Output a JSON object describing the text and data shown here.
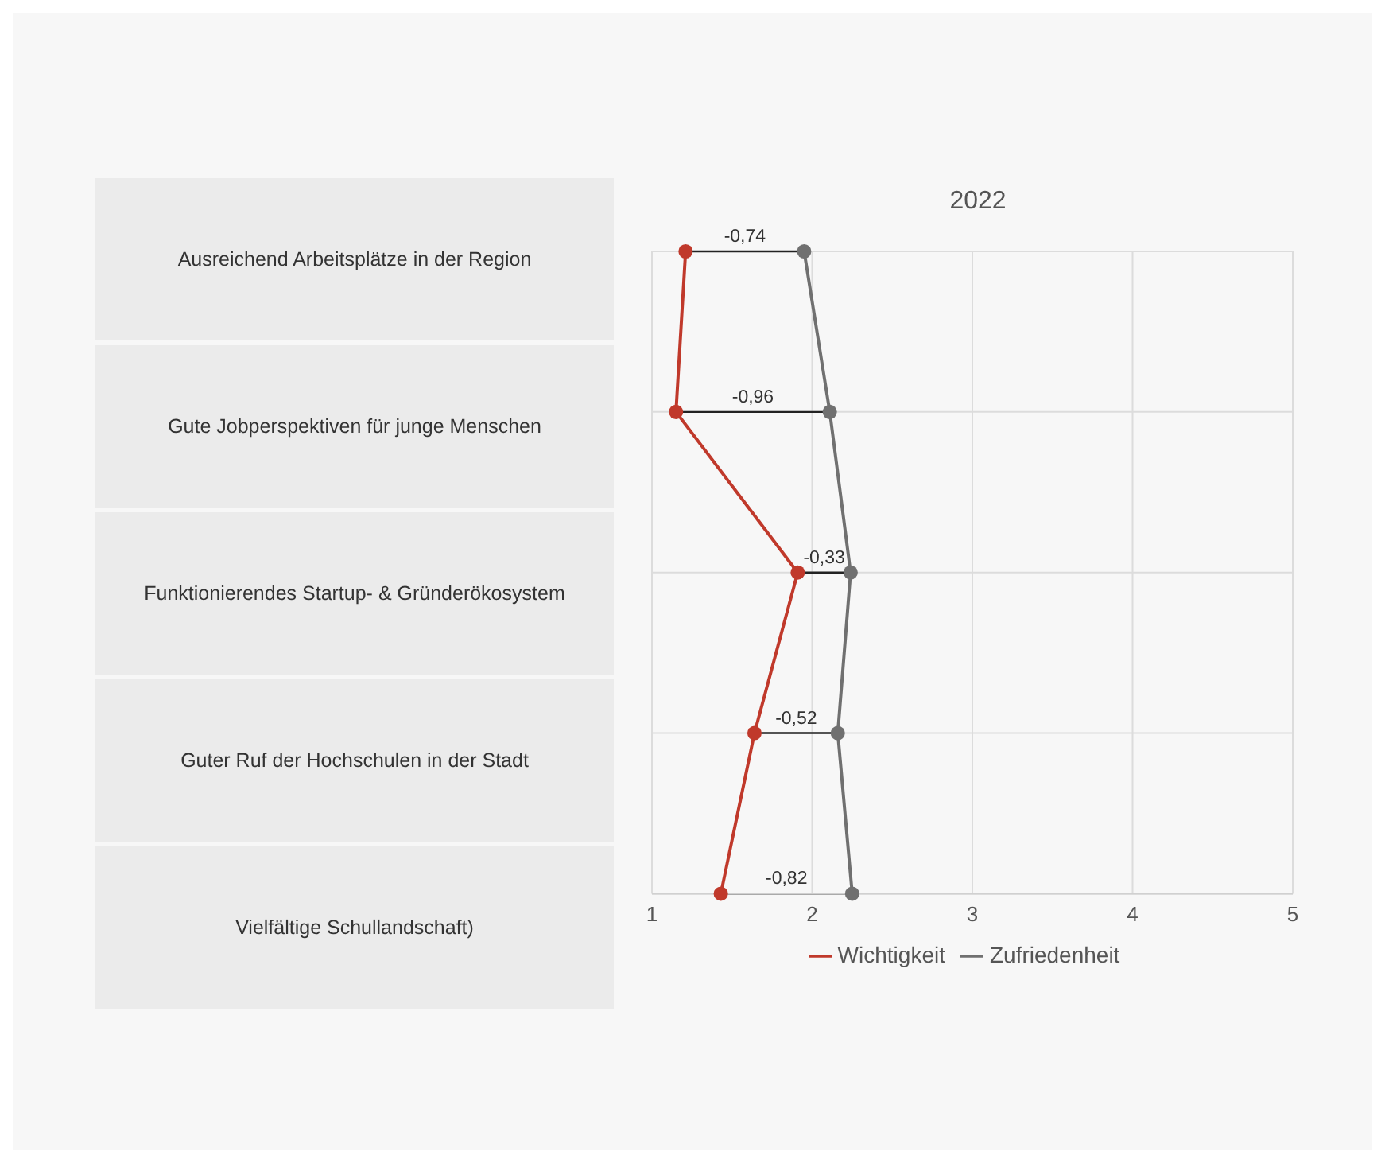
{
  "chart_data": {
    "type": "line",
    "title": "2022",
    "categories": [
      "Ausreichend Arbeitsplätze in der Region",
      "Gute Jobperspektiven für junge Menschen",
      "Funktionierendes Startup- & Gründerökosystem",
      "Guter Ruf der Hochschulen in der Stadt",
      "Vielfältige Schullandschaft)"
    ],
    "series": [
      {
        "name": "Wichtigkeit",
        "color": "#c0392b",
        "values": [
          1.21,
          1.15,
          1.91,
          1.64,
          1.43
        ]
      },
      {
        "name": "Zufriedenheit",
        "color": "#707070",
        "values": [
          1.95,
          2.11,
          2.24,
          2.16,
          2.25
        ]
      }
    ],
    "orientation": "horizontal",
    "xlim": [
      1,
      5
    ],
    "xticks": [
      1,
      2,
      3,
      4,
      5
    ],
    "grid": true,
    "legend": "bottom",
    "marker": "circle",
    "annotations": [
      "-0,74",
      "-0,96",
      "-0,33",
      "-0,52",
      "-0,82"
    ]
  }
}
